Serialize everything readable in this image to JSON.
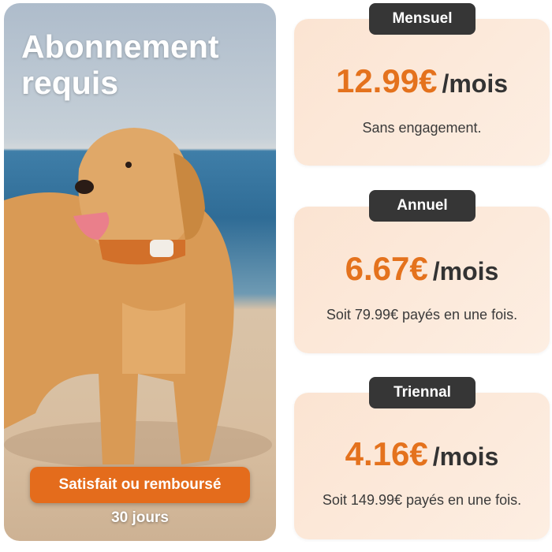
{
  "hero": {
    "title_line1": "Abonnement",
    "title_line2": "requis",
    "guarantee_label": "Satisfait ou remboursé",
    "guarantee_duration": "30 jours"
  },
  "plans": [
    {
      "name": "Mensuel",
      "price": "12.99€",
      "period": "/mois",
      "note": "Sans engagement."
    },
    {
      "name": "Annuel",
      "price": "6.67€",
      "period": "/mois",
      "note": "Soit 79.99€ payés en une fois."
    },
    {
      "name": "Triennal",
      "price": "4.16€",
      "period": "/mois",
      "note": "Soit 149.99€ payés en une fois."
    }
  ],
  "colors": {
    "accent": "#e4721d",
    "badge": "#363636",
    "card": "#fbe4d2"
  }
}
